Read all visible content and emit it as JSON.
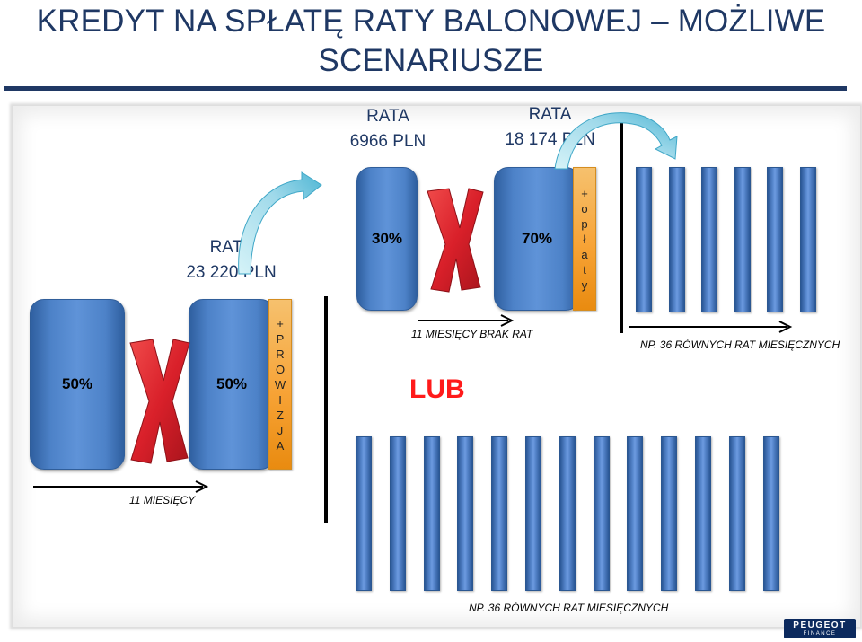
{
  "title_line1": "KREDYT NA SPŁATĘ RATY BALONOWEJ – MOŻLIWE",
  "title_line2": "SCENARIUSZE",
  "rata_left": {
    "label": "RATA",
    "value": "23 220 PLN"
  },
  "rata_mid": {
    "label": "RATA",
    "value": "6966 PLN"
  },
  "rata_right": {
    "label": "RATA",
    "value": "18 174 PLN"
  },
  "blocks": {
    "left_a": "50%",
    "left_b": "50%",
    "mid_a": "30%",
    "mid_b": "70%"
  },
  "strip_left_letters": [
    "+",
    "P",
    "R",
    "O",
    "W",
    "I",
    "Z",
    "J",
    "A"
  ],
  "strip_right_letters": [
    "+",
    "o",
    "p",
    "ł",
    "a",
    "t",
    "y"
  ],
  "captions": {
    "months_11": "11 MIESIĘCY",
    "no_payments": "11 MIESIĘCY BRAK RAT",
    "equal_36_top": "NP. 36 RÓWNYCH RAT MIESIĘCZNYCH",
    "equal_36_bottom": "NP. 36 RÓWNYCH RAT MIESIĘCZNYCH"
  },
  "or_label": "LUB",
  "bars_top_count": 6,
  "bars_bottom_count": 13,
  "colors": {
    "title": "#1f3864",
    "block": "#4f81bd",
    "strip": "#f79646",
    "cross": "#d9202a",
    "or": "#ff1a1a"
  },
  "logo": {
    "brand": "PEUGEOT",
    "sub": "FINANCE"
  }
}
